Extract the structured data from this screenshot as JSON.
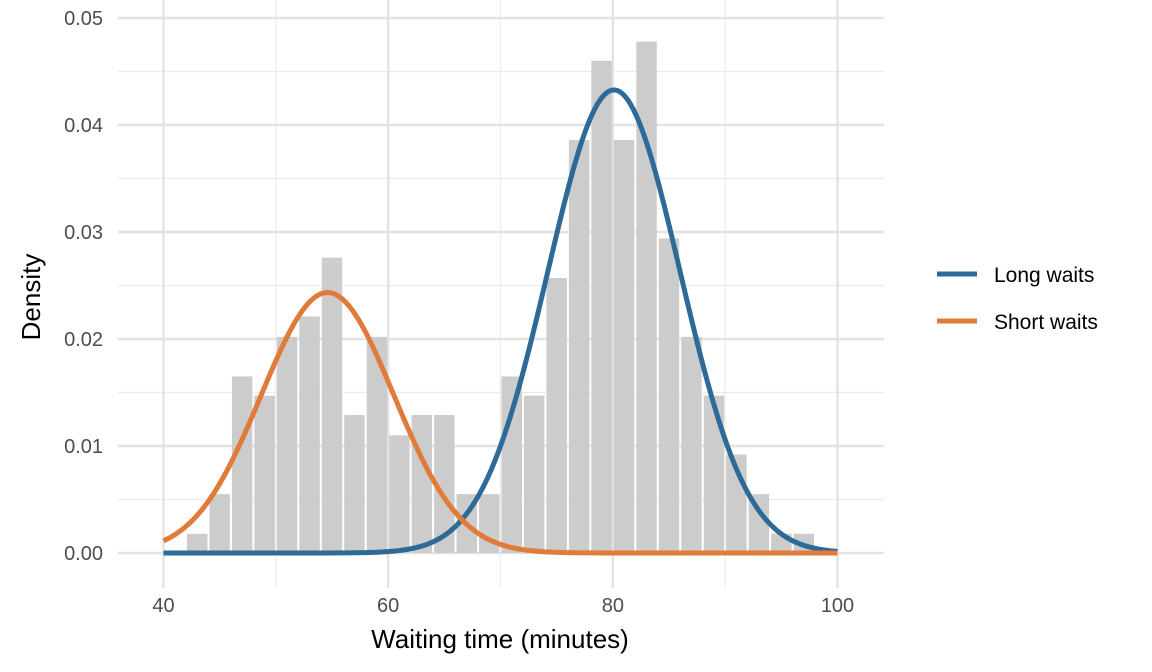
{
  "chart_data": {
    "type": "histogram-with-density-curves",
    "title": "",
    "xlabel": "Waiting time (minutes)",
    "ylabel": "Density",
    "xlim": [
      40,
      100
    ],
    "ylim": [
      0,
      0.05
    ],
    "x_ticks": [
      40,
      60,
      80,
      100
    ],
    "x_tick_labels": [
      "40",
      "60",
      "80",
      "100"
    ],
    "y_ticks": [
      0,
      0.01,
      0.02,
      0.03,
      0.04,
      0.05
    ],
    "y_tick_labels": [
      "0.00",
      "0.01",
      "0.02",
      "0.03",
      "0.04",
      "0.05"
    ],
    "grid": true,
    "legend_position": "right",
    "histogram": {
      "bin_width": 2,
      "color": "#cccccc",
      "bins": [
        {
          "x0": 42,
          "x1": 44,
          "density": 0.0018
        },
        {
          "x0": 44,
          "x1": 46,
          "density": 0.0055
        },
        {
          "x0": 46,
          "x1": 48,
          "density": 0.0165
        },
        {
          "x0": 48,
          "x1": 50,
          "density": 0.0147
        },
        {
          "x0": 50,
          "x1": 52,
          "density": 0.0202
        },
        {
          "x0": 52,
          "x1": 54,
          "density": 0.0221
        },
        {
          "x0": 54,
          "x1": 56,
          "density": 0.0276
        },
        {
          "x0": 56,
          "x1": 58,
          "density": 0.0129
        },
        {
          "x0": 58,
          "x1": 60,
          "density": 0.0202
        },
        {
          "x0": 60,
          "x1": 62,
          "density": 0.011
        },
        {
          "x0": 62,
          "x1": 64,
          "density": 0.0129
        },
        {
          "x0": 64,
          "x1": 66,
          "density": 0.0129
        },
        {
          "x0": 66,
          "x1": 68,
          "density": 0.0055
        },
        {
          "x0": 68,
          "x1": 70,
          "density": 0.0055
        },
        {
          "x0": 70,
          "x1": 72,
          "density": 0.0165
        },
        {
          "x0": 72,
          "x1": 74,
          "density": 0.0147
        },
        {
          "x0": 74,
          "x1": 76,
          "density": 0.0257
        },
        {
          "x0": 76,
          "x1": 78,
          "density": 0.0386
        },
        {
          "x0": 78,
          "x1": 80,
          "density": 0.046
        },
        {
          "x0": 80,
          "x1": 82,
          "density": 0.0386
        },
        {
          "x0": 82,
          "x1": 84,
          "density": 0.0478
        },
        {
          "x0": 84,
          "x1": 86,
          "density": 0.0294
        },
        {
          "x0": 86,
          "x1": 88,
          "density": 0.0202
        },
        {
          "x0": 88,
          "x1": 90,
          "density": 0.0147
        },
        {
          "x0": 90,
          "x1": 92,
          "density": 0.0092
        },
        {
          "x0": 92,
          "x1": 94,
          "density": 0.0055
        },
        {
          "x0": 94,
          "x1": 96,
          "density": 0.0018
        },
        {
          "x0": 96,
          "x1": 98,
          "density": 0.0018
        }
      ]
    },
    "series": [
      {
        "name": "Long waits",
        "color": "#2e6a97",
        "distribution": "normal",
        "mean": 80.1,
        "sd": 5.9,
        "weight": 0.64
      },
      {
        "name": "Short waits",
        "color": "#e07b39",
        "distribution": "normal",
        "mean": 54.6,
        "sd": 5.9,
        "weight": 0.36
      }
    ]
  }
}
